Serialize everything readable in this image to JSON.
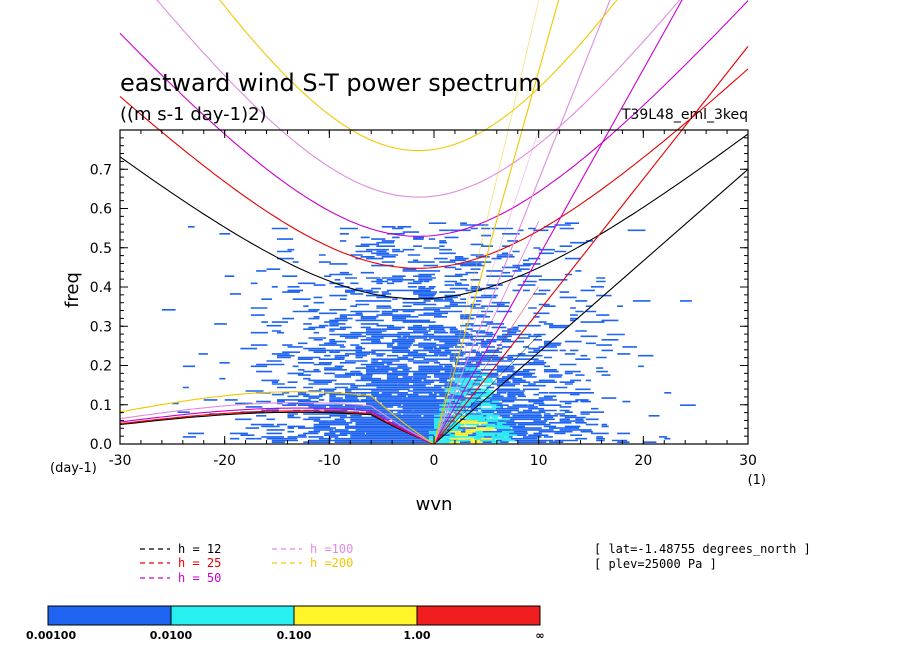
{
  "chart_data": {
    "type": "heatmap",
    "title": "eastward wind S-T power spectrum",
    "subtitle": "((m s-1 day-1)2)",
    "run_label": "T39L48_eml_3keq",
    "xlabel": "wvn",
    "ylabel": "freq",
    "x_unit_label": "(1)",
    "y_unit_label": "(day-1)",
    "xlim": [
      -30,
      30
    ],
    "ylim": [
      0,
      0.8
    ],
    "x_ticks": [
      -30,
      -20,
      -10,
      0,
      10,
      20,
      30
    ],
    "y_ticks": [
      0.0,
      0.1,
      0.2,
      0.3,
      0.4,
      0.5,
      0.6,
      0.7
    ],
    "x_tick_labels": [
      "-30",
      "-20",
      "-10",
      "0",
      "10",
      "20",
      "30"
    ],
    "y_tick_labels": [
      "0.0",
      "0.1",
      "0.2",
      "0.3",
      "0.4",
      "0.5",
      "0.6",
      "0.7"
    ],
    "colorbar": {
      "labels": [
        "0.00100",
        "0.0100",
        "0.100",
        "1.00",
        "∞"
      ],
      "colors": [
        "#1e64f0",
        "#28f0f0",
        "#fff528",
        "#f01e1e"
      ]
    },
    "dispersion_curves": [
      {
        "label": "h = 12",
        "h": 12,
        "color": "#000000"
      },
      {
        "label": "h = 25",
        "h": 25,
        "color": "#e60000"
      },
      {
        "label": "h = 50",
        "h": 50,
        "color": "#cc00cc"
      },
      {
        "label": "h =100",
        "h": 100,
        "color": "#e08ce0"
      },
      {
        "label": "h =200",
        "h": 200,
        "color": "#f0c800"
      }
    ],
    "info_lines": [
      "[ lat=-1.48755 degrees_north ]",
      "[ plev=25000 Pa ]"
    ]
  }
}
